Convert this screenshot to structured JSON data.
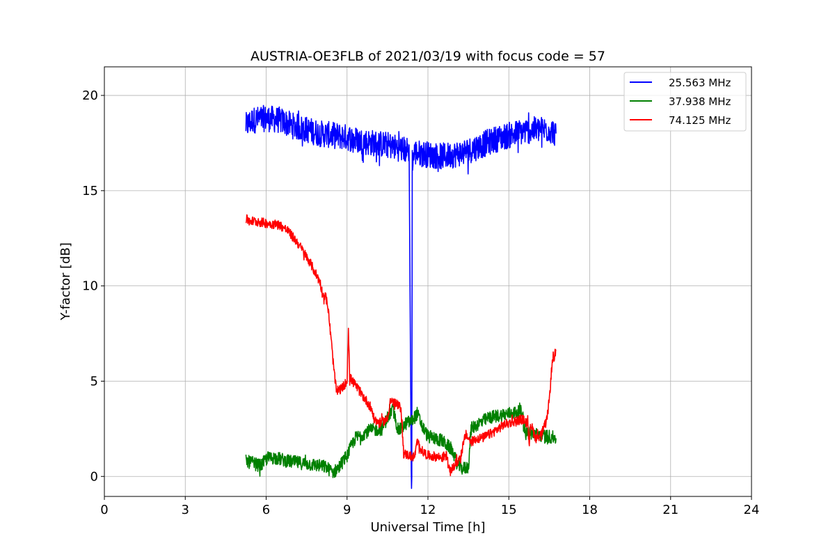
{
  "chart_data": {
    "type": "line",
    "title": "AUSTRIA-OE3FLB of 2021/03/19 with focus code = 57",
    "xlabel": "Universal Time [h]",
    "ylabel": "Y-factor [dB]",
    "xlim": [
      0,
      24
    ],
    "ylim": [
      -1.05,
      21.5
    ],
    "xticks": [
      0,
      3,
      6,
      9,
      12,
      15,
      18,
      21,
      24
    ],
    "yticks": [
      0,
      5,
      10,
      15,
      20
    ],
    "grid": true,
    "legend_position": "top-right",
    "series": [
      {
        "name": "25.563 MHz",
        "color": "#0000ff",
        "x": [
          5.25,
          5.5,
          6.0,
          6.5,
          7.0,
          7.5,
          8.0,
          8.5,
          9.0,
          9.5,
          10.0,
          10.5,
          11.0,
          11.3,
          11.38,
          11.4,
          11.42,
          11.5,
          12.0,
          12.5,
          13.0,
          13.5,
          14.0,
          14.5,
          15.0,
          15.5,
          16.0,
          16.5,
          16.75
        ],
        "y": [
          18.4,
          18.7,
          18.8,
          18.7,
          18.4,
          18.2,
          18.0,
          17.9,
          17.8,
          17.6,
          17.5,
          17.4,
          17.2,
          17.1,
          0.0,
          0.0,
          16.6,
          17.0,
          16.9,
          16.8,
          16.9,
          17.1,
          17.4,
          17.7,
          17.9,
          18.1,
          18.2,
          18.2,
          18.0
        ],
        "noise": 0.7
      },
      {
        "name": "37.938 MHz",
        "color": "#008000",
        "x": [
          5.25,
          5.5,
          5.8,
          6.0,
          6.3,
          6.8,
          7.3,
          7.8,
          8.2,
          8.5,
          8.7,
          9.0,
          9.3,
          9.8,
          10.3,
          10.5,
          10.7,
          10.9,
          11.0,
          11.2,
          11.4,
          11.6,
          11.8,
          12.0,
          12.5,
          12.9,
          13.1,
          13.3,
          13.5,
          13.6,
          13.9,
          14.3,
          15.0,
          15.5,
          15.6,
          15.7,
          16.0,
          16.5,
          16.75
        ],
        "y": [
          0.8,
          0.7,
          0.55,
          0.9,
          1.0,
          0.8,
          0.7,
          0.6,
          0.5,
          0.2,
          0.5,
          1.1,
          2.0,
          2.4,
          2.5,
          3.1,
          3.5,
          2.4,
          2.5,
          2.8,
          2.9,
          3.3,
          2.6,
          2.1,
          1.9,
          1.4,
          0.6,
          0.4,
          0.5,
          2.5,
          2.8,
          3.1,
          3.3,
          3.4,
          2.4,
          2.3,
          2.2,
          2.1,
          2.0
        ],
        "noise": 0.35
      },
      {
        "name": "74.125 MHz",
        "color": "#ff0000",
        "x": [
          5.25,
          5.5,
          6.0,
          6.5,
          6.8,
          7.2,
          7.6,
          8.0,
          8.1,
          8.2,
          8.3,
          8.5,
          8.6,
          8.8,
          9.0,
          9.05,
          9.1,
          9.3,
          9.6,
          9.9,
          10.0,
          10.2,
          10.5,
          10.6,
          10.8,
          11.0,
          11.1,
          11.5,
          11.6,
          11.8,
          12.0,
          12.5,
          12.7,
          12.8,
          13.0,
          13.2,
          13.4,
          13.6,
          13.8,
          14.0,
          14.4,
          14.8,
          15.2,
          15.5,
          15.7,
          15.75,
          15.8,
          16.0,
          16.2,
          16.4,
          16.5,
          16.6,
          16.75
        ],
        "y": [
          13.5,
          13.4,
          13.3,
          13.2,
          12.9,
          12.2,
          11.3,
          10.2,
          9.5,
          9.5,
          8.8,
          5.8,
          4.5,
          4.6,
          5.0,
          7.8,
          5.2,
          4.8,
          4.2,
          3.6,
          3.0,
          2.8,
          3.0,
          4.0,
          3.8,
          3.6,
          1.2,
          1.0,
          1.8,
          1.3,
          1.1,
          1.0,
          1.1,
          0.2,
          0.6,
          1.0,
          2.2,
          1.8,
          2.0,
          2.0,
          2.3,
          2.7,
          2.9,
          3.0,
          2.8,
          1.6,
          2.8,
          2.0,
          2.2,
          2.9,
          4.0,
          5.9,
          6.6
        ],
        "noise": 0.25
      }
    ]
  }
}
